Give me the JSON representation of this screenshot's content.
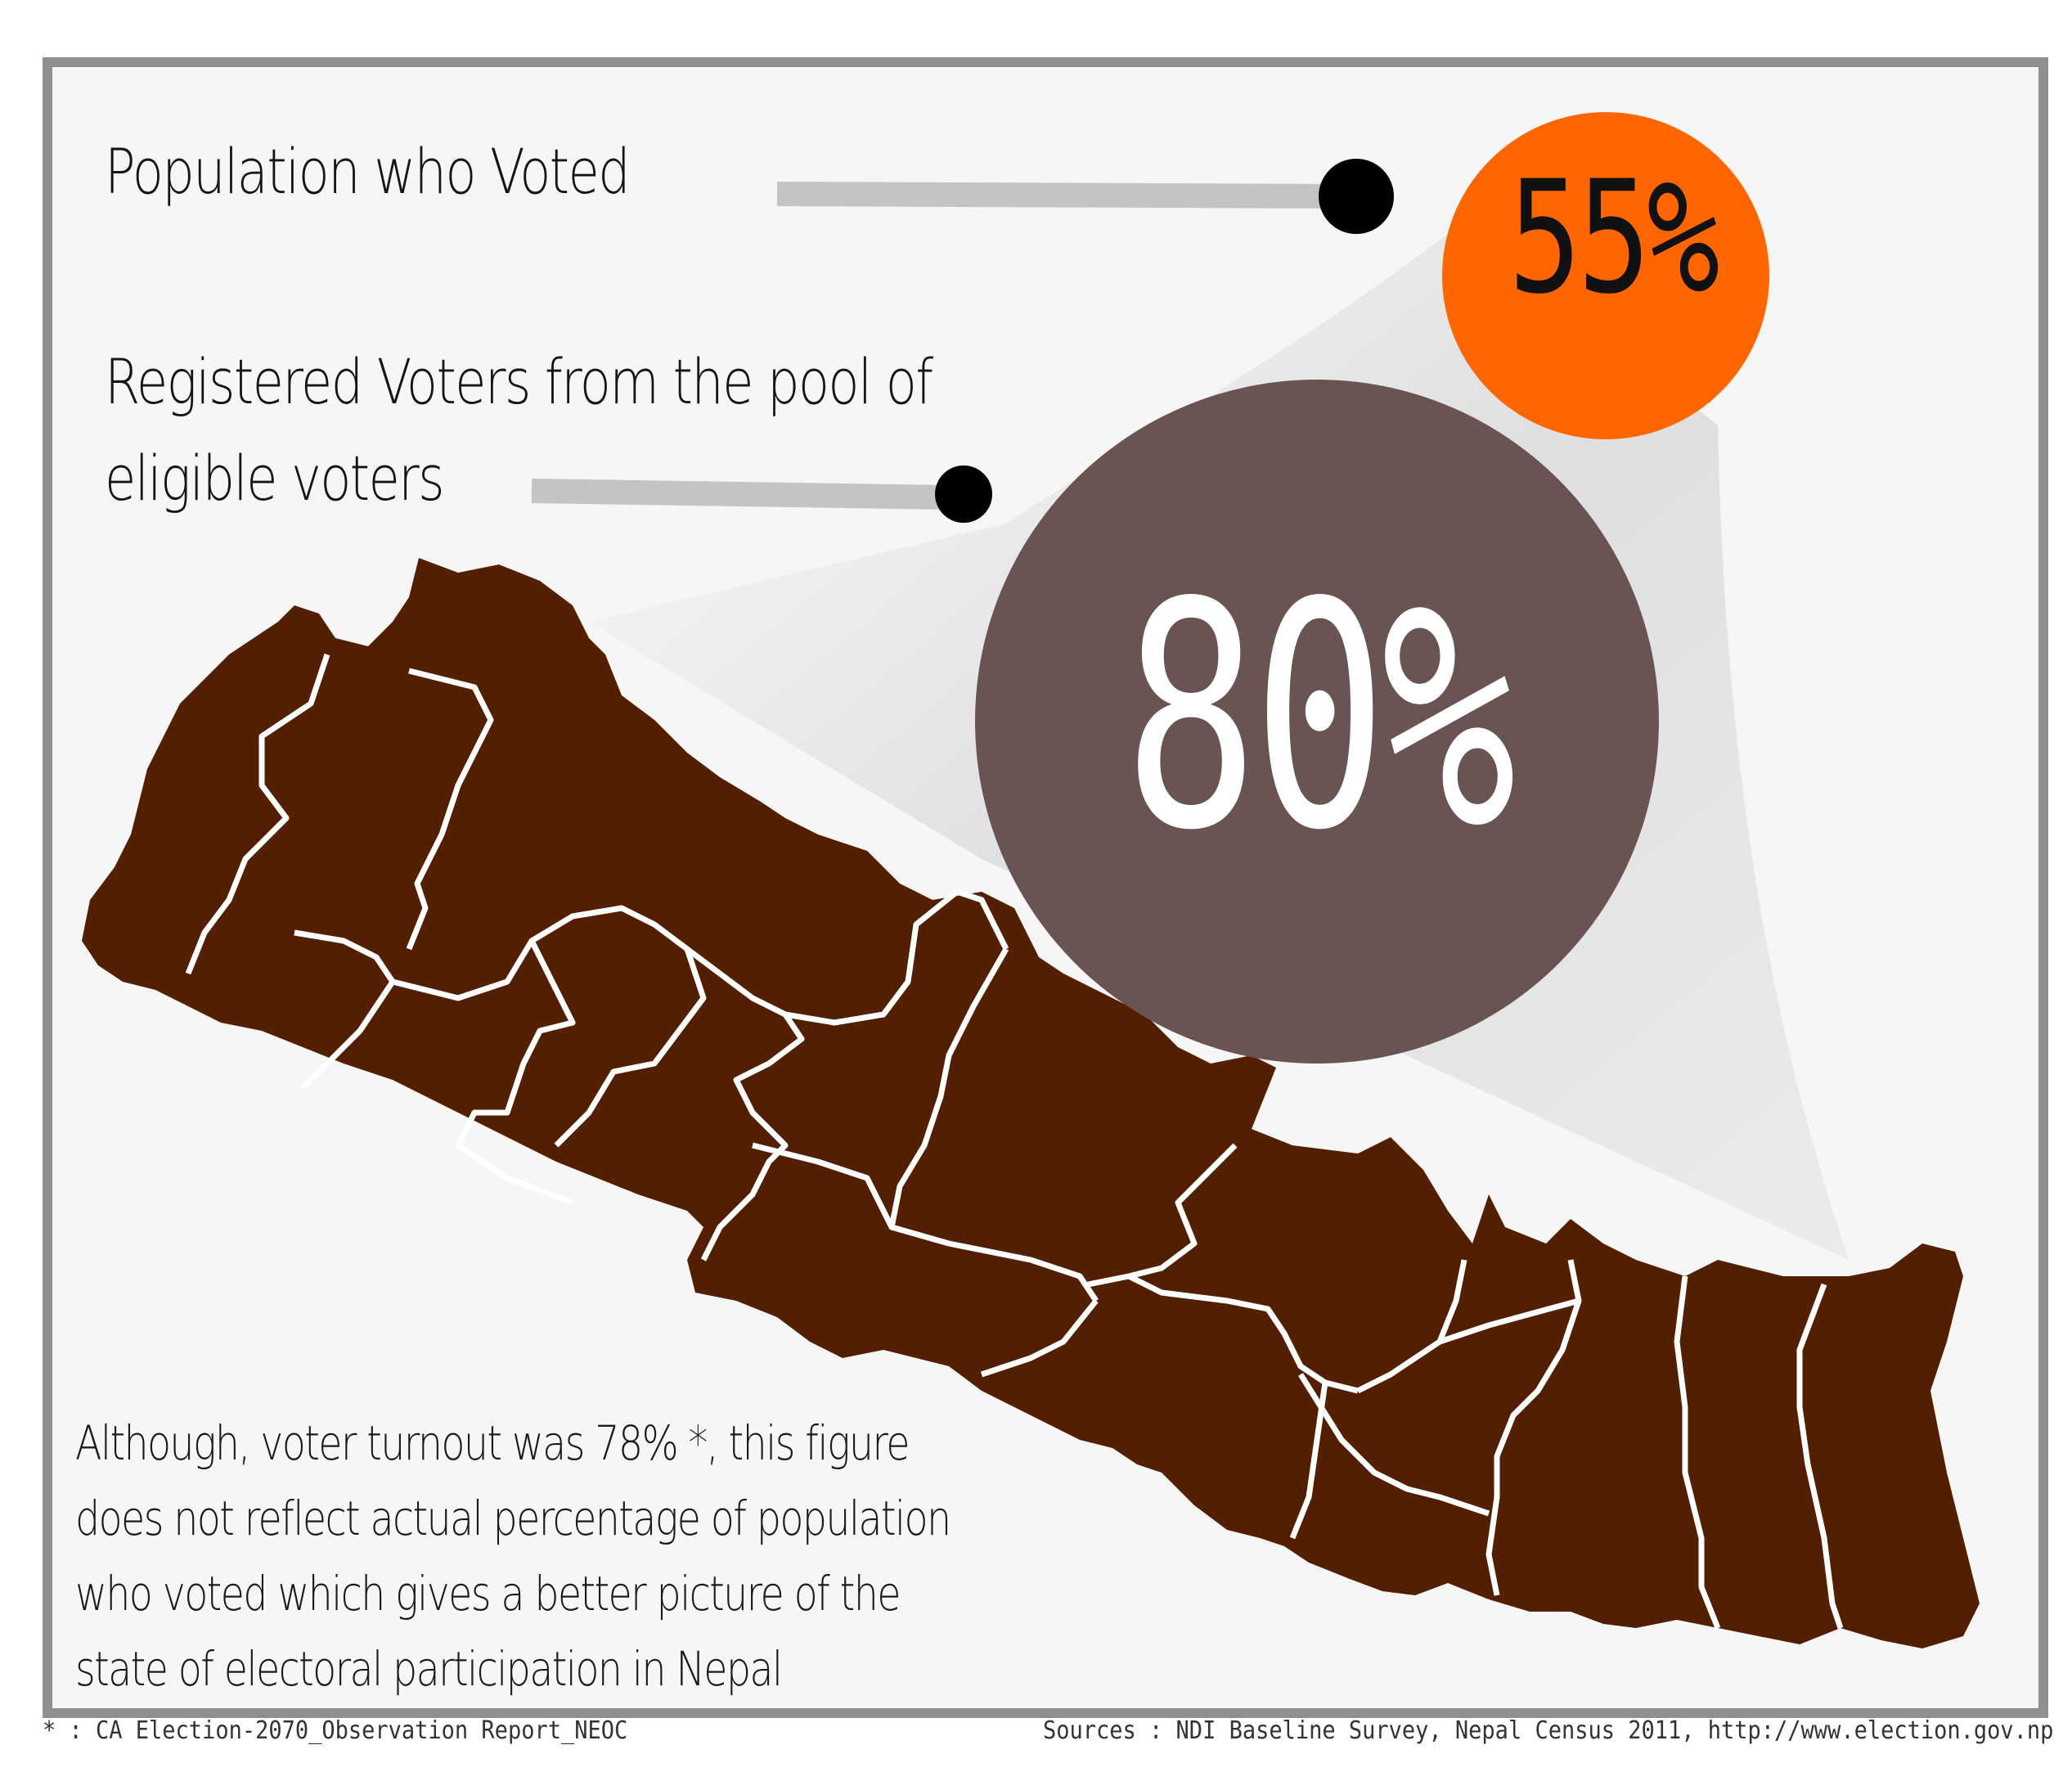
{
  "header": {
    "population_voted_label": "Population who Voted",
    "registered_label_line1": "Registered Voters from the pool of",
    "registered_label_line2": "eligible voters"
  },
  "stats": {
    "population_voted_pct": "55%",
    "registered_voters_pct": "80%"
  },
  "note": {
    "line1": "Although, voter turnout was 78% *, this figure",
    "line2": "does not reflect actual percentage of population",
    "line3": "who voted which gives a better picture of the",
    "line4": "state of electoral participation in Nepal"
  },
  "footer": {
    "footnote": "* : CA Election-2070_Observation Report_NEOC",
    "sources": "Sources : NDI Baseline Survey, Nepal Census 2011, http://www.election.gov.np"
  },
  "colors": {
    "frame": "#8f8f8f",
    "background": "#f6f6f6",
    "orange_circle": "#ff6600",
    "brown_circle": "#6a5353",
    "map_fill": "#522000",
    "connector_line": "#c4c4c4",
    "dot": "#000000"
  },
  "icons": {
    "map": "nepal-map-icon"
  }
}
